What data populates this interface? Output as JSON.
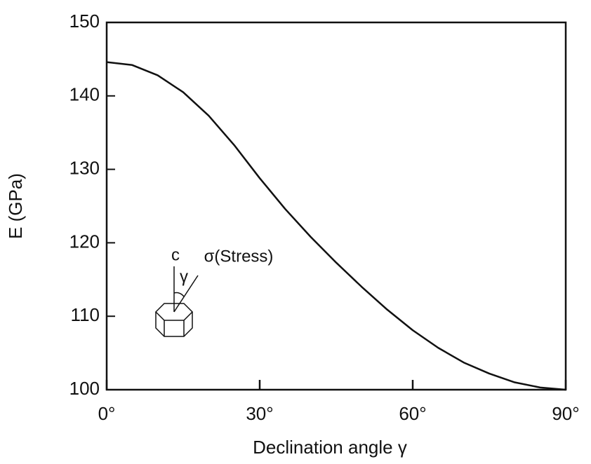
{
  "chart_data": {
    "type": "line",
    "xlabel": "Declination angle  γ",
    "ylabel": "E (GPa)",
    "annotations": [
      "c",
      "γ",
      "σ(Stress)"
    ],
    "x": [
      0,
      5,
      10,
      15,
      20,
      25,
      30,
      35,
      40,
      45,
      50,
      55,
      60,
      65,
      70,
      75,
      80,
      85,
      90
    ],
    "values": [
      144.6,
      144.2,
      142.8,
      140.5,
      137.3,
      133.3,
      128.8,
      124.6,
      120.8,
      117.3,
      114.0,
      110.9,
      108.1,
      105.7,
      103.7,
      102.2,
      101.0,
      100.3,
      100.0
    ],
    "color": "#111111",
    "xlim": [
      0,
      90
    ],
    "xticks": [
      {
        "value": 0,
        "label": "0°"
      },
      {
        "value": 30,
        "label": "30°"
      },
      {
        "value": 60,
        "label": "60°"
      },
      {
        "value": 90,
        "label": "90°"
      }
    ],
    "ylim": [
      100,
      150
    ],
    "yticks": [
      100,
      110,
      120,
      130,
      140,
      150
    ],
    "grid": false
  }
}
